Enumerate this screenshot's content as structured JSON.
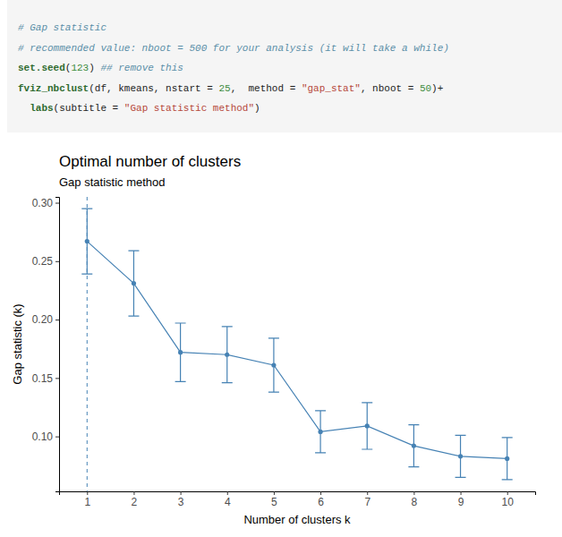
{
  "code": {
    "lines": [
      "# Gap statistic",
      "# recommended value: nboot = 500 for your analysis (it will take a while)",
      "set.seed(123) ## remove this",
      "fviz_nbclust(df, kmeans, nstart = 25,  method = \"gap_stat\", nboot = 50)+",
      "  labs(subtitle = \"Gap statistic method\")"
    ]
  },
  "chart_data": {
    "type": "line",
    "title": "Optimal number of clusters",
    "subtitle": "Gap statistic method",
    "x_label": "Number of clusters k",
    "y_label": "Gap statistic (k)",
    "categories": [
      1,
      2,
      3,
      4,
      5,
      6,
      7,
      8,
      9,
      10
    ],
    "values": [
      0.267,
      0.231,
      0.172,
      0.17,
      0.161,
      0.104,
      0.109,
      0.092,
      0.083,
      0.081
    ],
    "errors": [
      0.028,
      0.028,
      0.025,
      0.024,
      0.023,
      0.018,
      0.02,
      0.018,
      0.018,
      0.018
    ],
    "vline": 1,
    "color": "#4682b4",
    "marker": "circle",
    "line_style": "solid",
    "grid": false,
    "ylim": [
      0.053,
      0.305
    ],
    "yticks": [
      {
        "value": 0.1,
        "label": "0.10"
      },
      0.15,
      {
        "value": 0.2,
        "label": "0.20"
      },
      0.25,
      {
        "value": 0.3,
        "label": "0.30"
      }
    ]
  }
}
